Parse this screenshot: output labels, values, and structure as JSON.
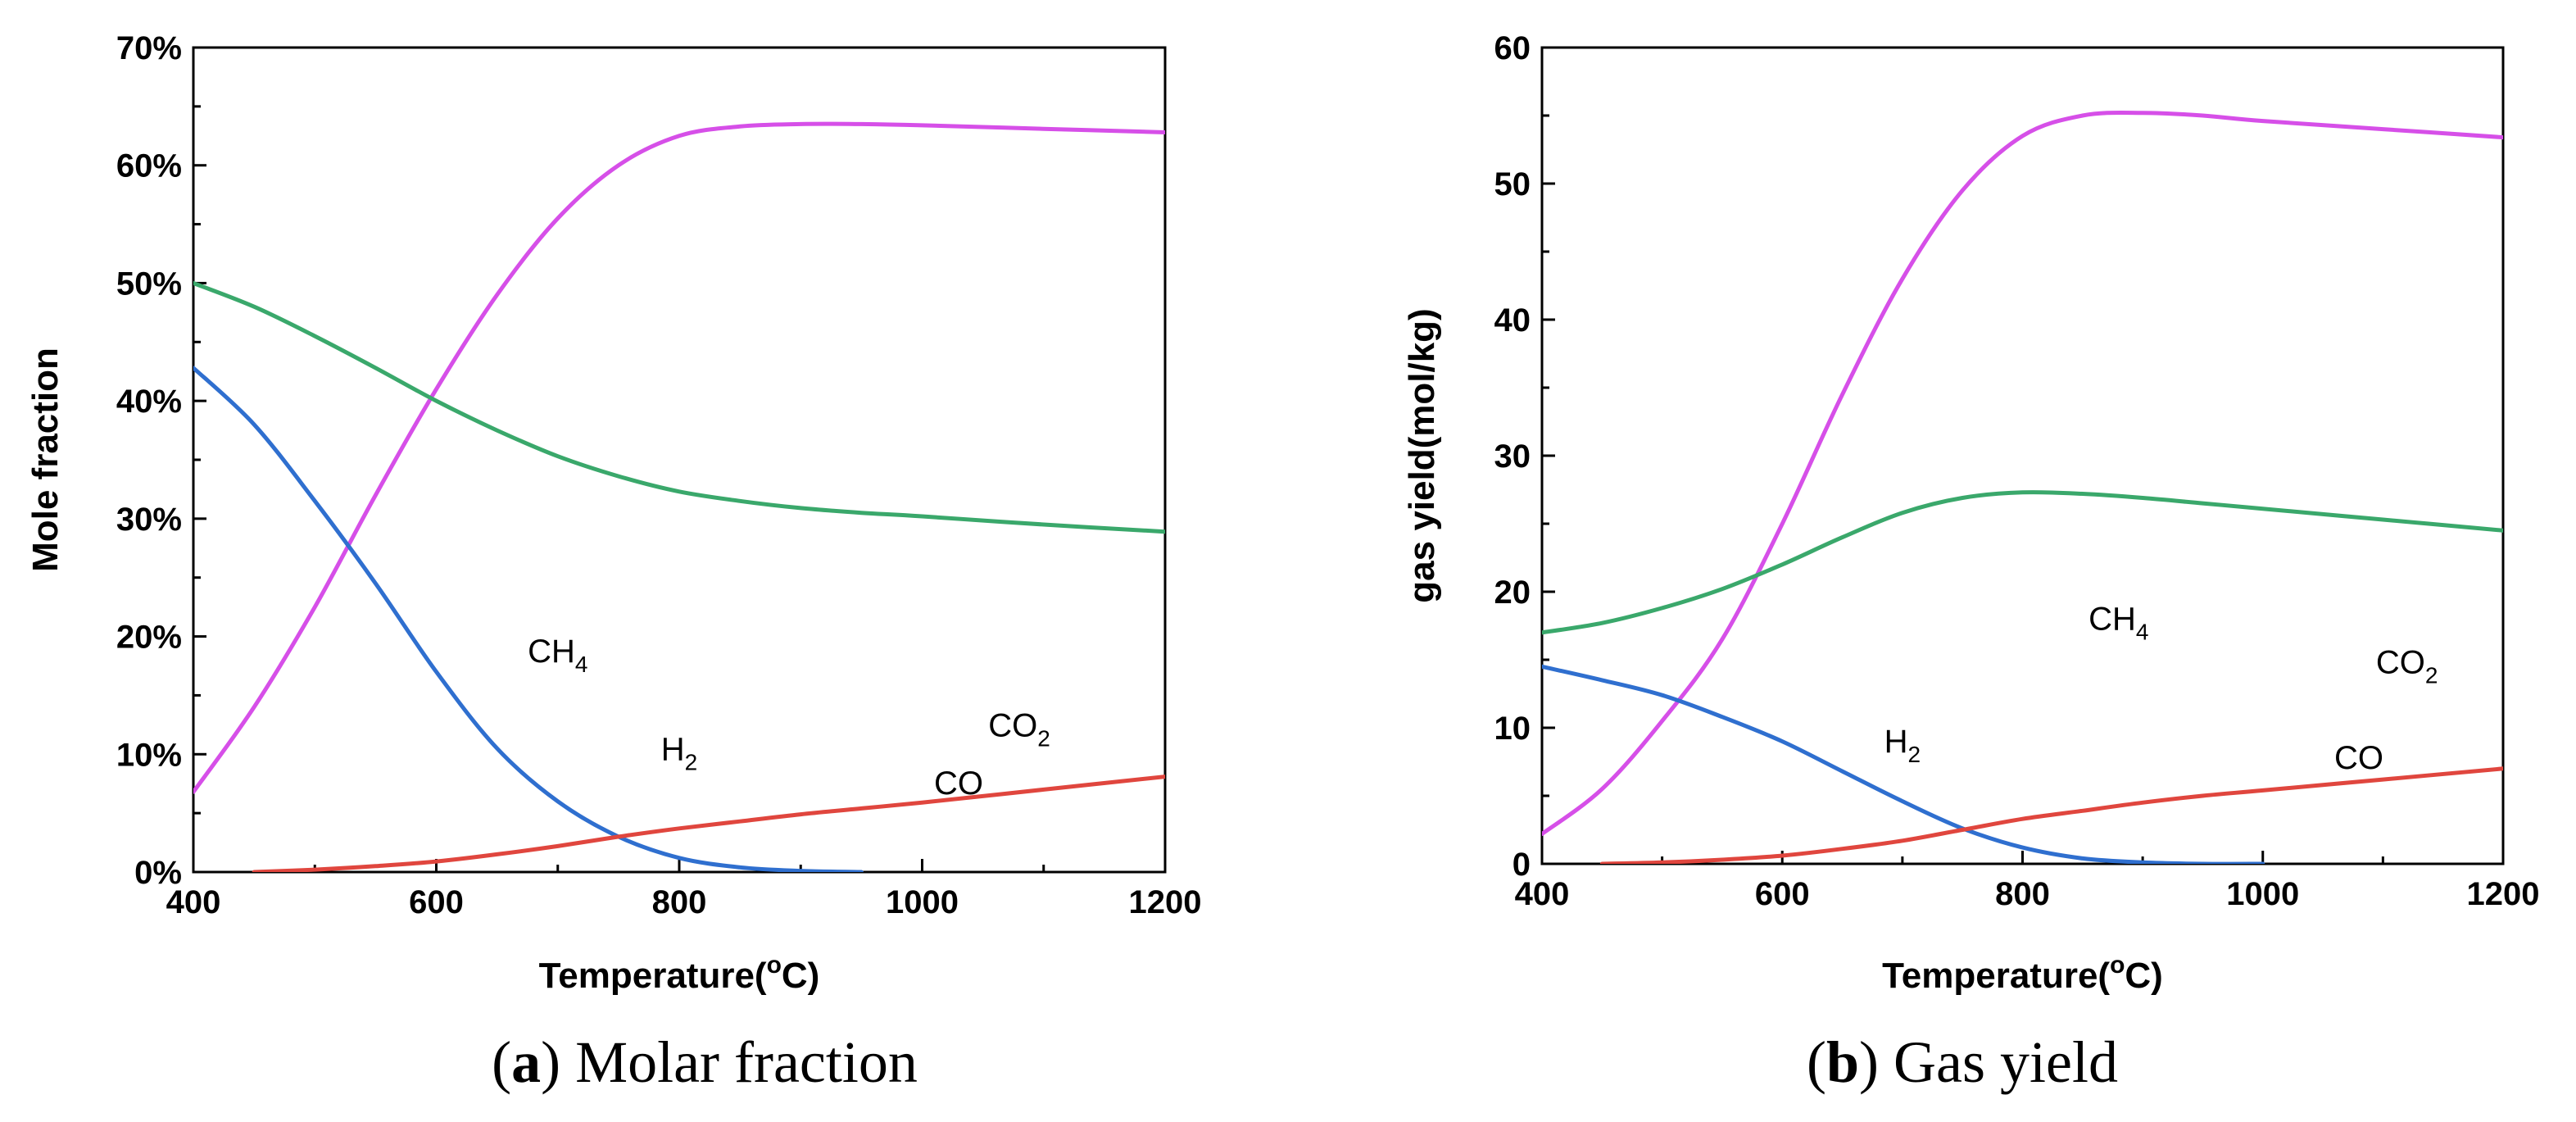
{
  "chart_data": [
    {
      "type": "line",
      "panel": "a",
      "caption": {
        "letter": "a",
        "text": " Molar fraction"
      },
      "xlabel": "Temperature(",
      "xlabel_sup": "o",
      "xlabel_end": "C)",
      "ylabel": "Mole fraction",
      "xlim": [
        400,
        1200
      ],
      "ylim": [
        0,
        70
      ],
      "x_ticks": [
        400,
        600,
        800,
        1000,
        1200
      ],
      "y_ticks": [
        0,
        10,
        20,
        30,
        40,
        50,
        60,
        70
      ],
      "y_tick_suffix": "%",
      "grid": false,
      "series": [
        {
          "name": "H2",
          "label": "H",
          "label_sub": "2",
          "color": "#d64fe8",
          "label_x": 800,
          "label_y": 9.5,
          "x": [
            400,
            450,
            500,
            550,
            600,
            650,
            700,
            750,
            800,
            850,
            900,
            950,
            1000,
            1100,
            1200
          ],
          "y": [
            6.8,
            14.0,
            22.5,
            32.0,
            41.0,
            49.0,
            55.5,
            60.0,
            62.5,
            63.3,
            63.5,
            63.5,
            63.4,
            63.1,
            62.8
          ]
        },
        {
          "name": "CO2",
          "label": "CO",
          "label_sub": "2",
          "color": "#3aa86b",
          "label_x": 1080,
          "label_y": 11.5,
          "x": [
            400,
            450,
            500,
            550,
            600,
            650,
            700,
            750,
            800,
            850,
            900,
            950,
            1000,
            1100,
            1200
          ],
          "y": [
            50.0,
            48.0,
            45.5,
            42.8,
            40.0,
            37.5,
            35.3,
            33.6,
            32.3,
            31.5,
            30.9,
            30.5,
            30.2,
            29.5,
            28.9
          ]
        },
        {
          "name": "CH4",
          "label": "CH",
          "label_sub": "4",
          "color": "#2f6fcf",
          "label_x": 700,
          "label_y": 17.8,
          "x": [
            400,
            450,
            500,
            550,
            600,
            650,
            700,
            750,
            800,
            850,
            900,
            950
          ],
          "y": [
            42.8,
            38.0,
            31.5,
            24.5,
            17.0,
            10.5,
            6.0,
            3.0,
            1.2,
            0.4,
            0.1,
            0.0
          ]
        },
        {
          "name": "CO",
          "label": "CO",
          "label_sub": "",
          "color": "#e0463e",
          "label_x": 1030,
          "label_y": 6.6,
          "x": [
            450,
            500,
            550,
            600,
            650,
            700,
            750,
            800,
            850,
            900,
            950,
            1000,
            1100,
            1200
          ],
          "y": [
            0.0,
            0.2,
            0.5,
            0.9,
            1.5,
            2.2,
            3.0,
            3.7,
            4.3,
            4.9,
            5.4,
            5.9,
            7.0,
            8.1
          ]
        }
      ]
    },
    {
      "type": "line",
      "panel": "b",
      "caption": {
        "letter": "b",
        "text": " Gas yield"
      },
      "xlabel": "Temperature(",
      "xlabel_sup": "o",
      "xlabel_end": "C)",
      "ylabel": "gas yield(mol/kg)",
      "xlim": [
        400,
        1200
      ],
      "ylim": [
        0,
        60
      ],
      "x_ticks": [
        400,
        600,
        800,
        1000,
        1200
      ],
      "y_ticks": [
        0,
        10,
        20,
        30,
        40,
        50,
        60
      ],
      "y_tick_suffix": "",
      "grid": false,
      "series": [
        {
          "name": "H2",
          "label": "H",
          "label_sub": "2",
          "color": "#d64fe8",
          "label_x": 700,
          "label_y": 8.2,
          "x": [
            400,
            450,
            500,
            550,
            600,
            650,
            700,
            750,
            800,
            850,
            900,
            950,
            1000,
            1100,
            1200
          ],
          "y": [
            2.2,
            5.5,
            10.5,
            16.5,
            25.0,
            34.5,
            43.0,
            49.5,
            53.5,
            55.0,
            55.2,
            55.0,
            54.6,
            54.0,
            53.4
          ]
        },
        {
          "name": "CO2",
          "label": "CO",
          "label_sub": "2",
          "color": "#3aa86b",
          "label_x": 1120,
          "label_y": 14.0,
          "x": [
            400,
            450,
            500,
            550,
            600,
            650,
            700,
            750,
            800,
            850,
            900,
            950,
            1000,
            1100,
            1200
          ],
          "y": [
            17.0,
            17.7,
            18.8,
            20.2,
            22.0,
            24.0,
            25.8,
            26.9,
            27.3,
            27.2,
            26.9,
            26.5,
            26.1,
            25.3,
            24.5
          ]
        },
        {
          "name": "CH4",
          "label": "CH",
          "label_sub": "4",
          "color": "#2f6fcf",
          "label_x": 880,
          "label_y": 17.2,
          "x": [
            400,
            450,
            500,
            550,
            600,
            650,
            700,
            750,
            800,
            850,
            900,
            950,
            1000
          ],
          "y": [
            14.5,
            13.5,
            12.4,
            10.8,
            9.0,
            6.8,
            4.6,
            2.6,
            1.2,
            0.4,
            0.1,
            0.0,
            0.0
          ]
        },
        {
          "name": "CO",
          "label": "CO",
          "label_sub": "",
          "color": "#e0463e",
          "label_x": 1080,
          "label_y": 7.0,
          "x": [
            450,
            500,
            550,
            600,
            650,
            700,
            750,
            800,
            850,
            900,
            950,
            1000,
            1100,
            1200
          ],
          "y": [
            0.0,
            0.1,
            0.3,
            0.6,
            1.1,
            1.7,
            2.5,
            3.3,
            3.9,
            4.5,
            5.0,
            5.4,
            6.2,
            7.0
          ]
        }
      ]
    }
  ]
}
